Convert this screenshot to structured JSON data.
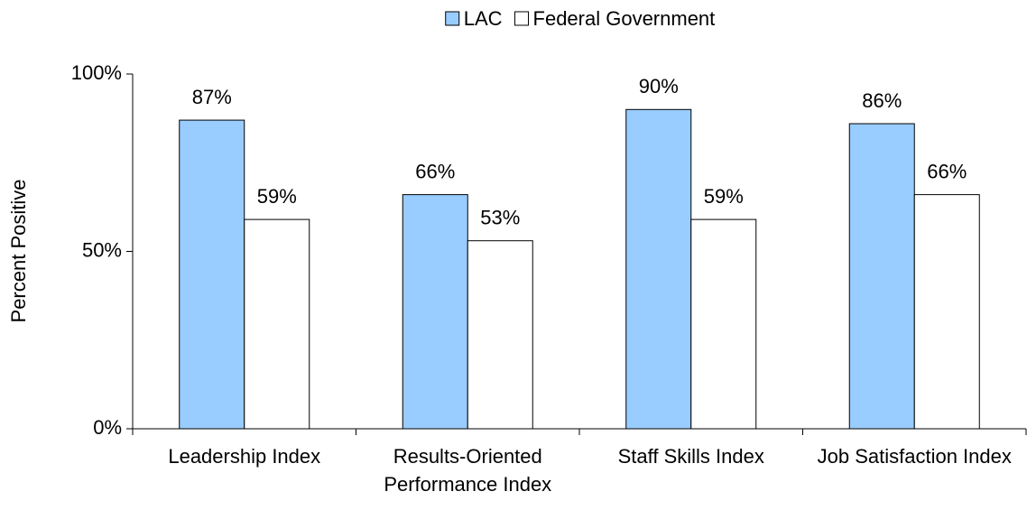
{
  "chart_data": {
    "type": "bar",
    "y_label": "Percent Positive",
    "categories": [
      "Leadership Index",
      "Results-Oriented Performance Index",
      "Staff Skills Index",
      "Job Satisfaction Index"
    ],
    "series": [
      {
        "name": "LAC",
        "color": "#99ccff",
        "values": [
          87,
          66,
          90,
          86
        ],
        "value_labels": [
          "87%",
          "66%",
          "90%",
          "86%"
        ]
      },
      {
        "name": "Federal Government",
        "color": "#ffffff",
        "values": [
          59,
          53,
          59,
          66
        ],
        "value_labels": [
          "59%",
          "53%",
          "59%",
          "66%"
        ]
      }
    ],
    "ylim": [
      0,
      100
    ],
    "yticks": [
      {
        "value": 0,
        "label": "0%"
      },
      {
        "value": 50,
        "label": "50%"
      },
      {
        "value": 100,
        "label": "100%"
      }
    ],
    "legend": "top"
  }
}
